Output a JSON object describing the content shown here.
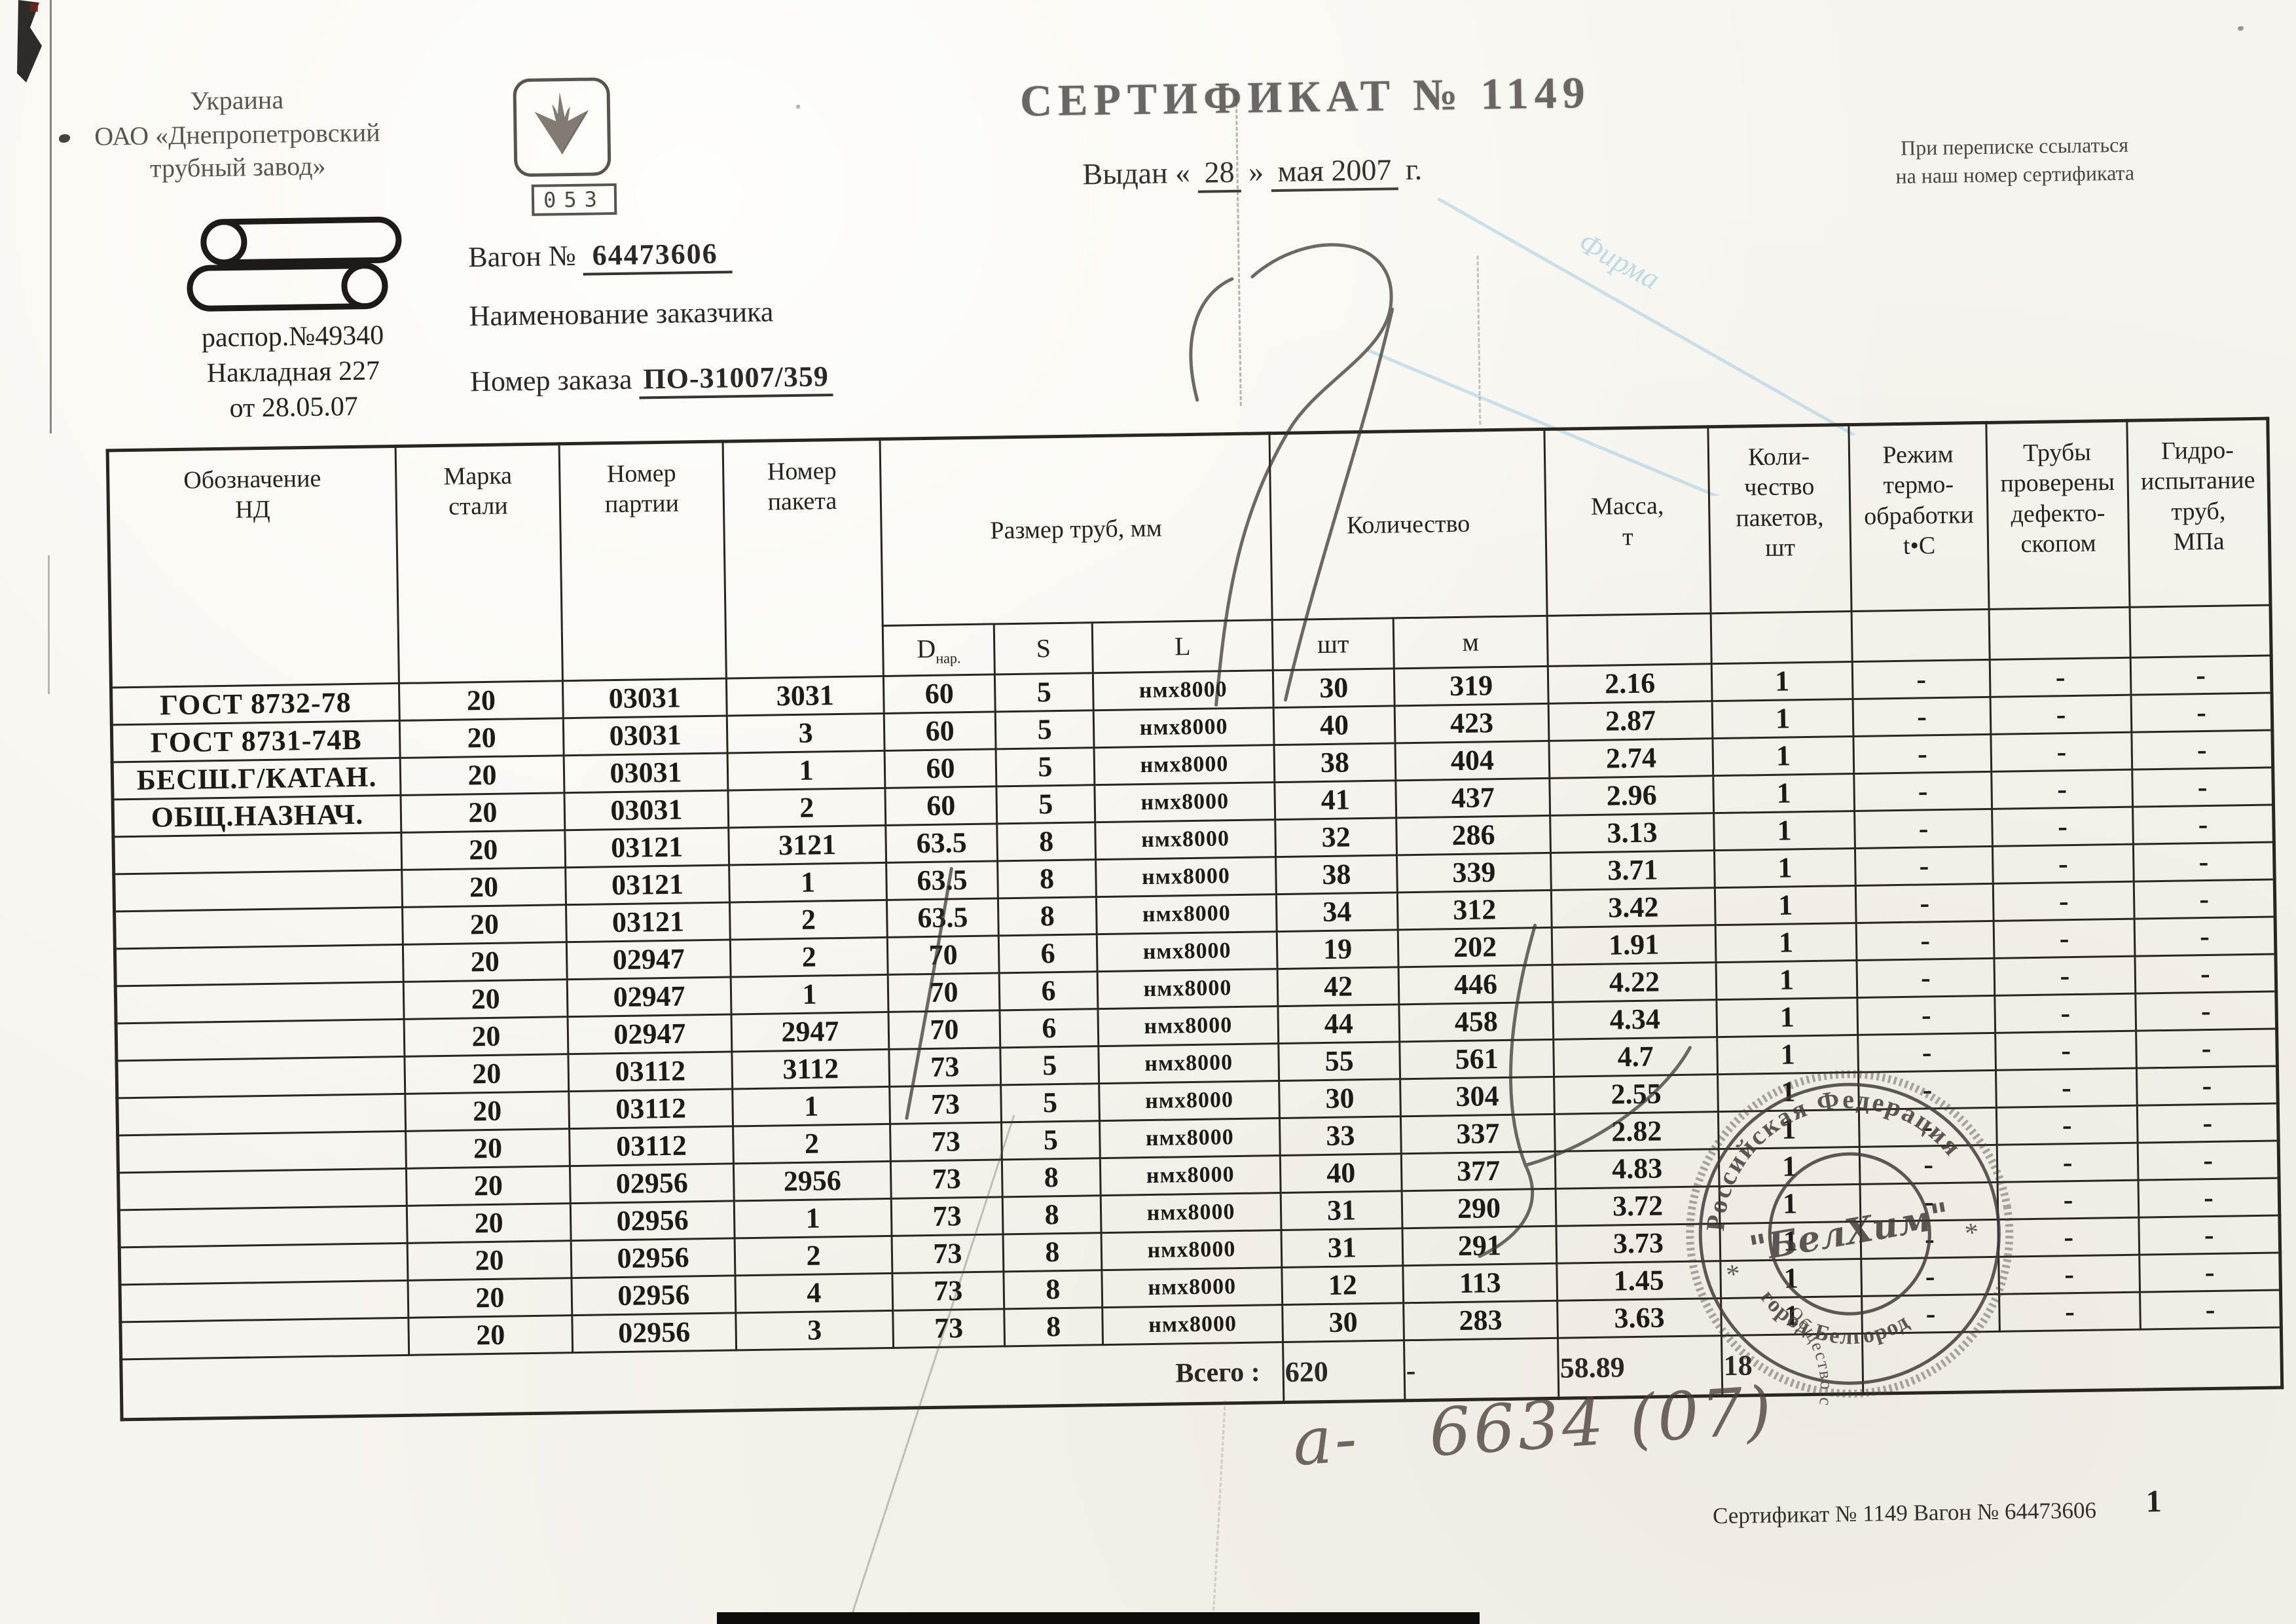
{
  "page": {
    "background": "#f6f4ee",
    "ink": "#2b2724"
  },
  "header": {
    "country": "Украина",
    "company": "ОАО «Днепропетровский\nтрубный завод»",
    "dispatch": "распор.№49340",
    "waybill": "Накладная 227",
    "waybill_date": "от 28.05.07",
    "badge": "053",
    "wagon_label": "Вагон №",
    "wagon_number": "64473606",
    "customer_label": "Наименование заказчика",
    "order_label": "Номер заказа",
    "order_number": "ПО-31007/359",
    "title": "СЕРТИФИКАТ № 1149",
    "issued_prefix": "Выдан «",
    "issued_day": "28",
    "issued_close": "»",
    "issued_date": "мая 2007",
    "issued_suffix": "г.",
    "note": "При переписке ссылаться\nна наш номер сертификата",
    "watermark": "Фирма"
  },
  "table": {
    "headers": {
      "c1": "Обозначение\nНД",
      "c2": "Марка\nстали",
      "c3": "Номер\nпартии",
      "c4": "Номер\nпакета",
      "size_group": "Размер труб, мм",
      "qty_group": "Количество",
      "c7": "Масса,\nт",
      "c8": "Коли-\nчество\nпакетов,\nшт",
      "c9": "Режим\nтермо-\nобработки\nt•С",
      "c10": "Трубы\nпроверены\nдефекто-\nскопом",
      "c11": "Гидро-\nиспытание\nтруб,\nМПа",
      "sub": {
        "d_main": "D",
        "d_sub": "нар.",
        "s": "S",
        "l": "L",
        "pcs": "шт",
        "m": "м"
      }
    },
    "rows": [
      [
        "ГОСТ 8732-78",
        "20",
        "03031",
        "3031",
        "60",
        "5",
        "нмх8000",
        "30",
        "319",
        "2.16",
        "1",
        "-",
        "-",
        "-"
      ],
      [
        "ГОСТ 8731-74В",
        "20",
        "03031",
        "3",
        "60",
        "5",
        "нмх8000",
        "40",
        "423",
        "2.87",
        "1",
        "-",
        "-",
        "-"
      ],
      [
        "БЕСШ.Г/КАТАН.",
        "20",
        "03031",
        "1",
        "60",
        "5",
        "нмх8000",
        "38",
        "404",
        "2.74",
        "1",
        "-",
        "-",
        "-"
      ],
      [
        "ОБЩ.НАЗНАЧ.",
        "20",
        "03031",
        "2",
        "60",
        "5",
        "нмх8000",
        "41",
        "437",
        "2.96",
        "1",
        "-",
        "-",
        "-"
      ],
      [
        "",
        "20",
        "03121",
        "3121",
        "63.5",
        "8",
        "нмх8000",
        "32",
        "286",
        "3.13",
        "1",
        "-",
        "-",
        "-"
      ],
      [
        "",
        "20",
        "03121",
        "1",
        "63.5",
        "8",
        "нмх8000",
        "38",
        "339",
        "3.71",
        "1",
        "-",
        "-",
        "-"
      ],
      [
        "",
        "20",
        "03121",
        "2",
        "63.5",
        "8",
        "нмх8000",
        "34",
        "312",
        "3.42",
        "1",
        "-",
        "-",
        "-"
      ],
      [
        "",
        "20",
        "02947",
        "2",
        "70",
        "6",
        "нмх8000",
        "19",
        "202",
        "1.91",
        "1",
        "-",
        "-",
        "-"
      ],
      [
        "",
        "20",
        "02947",
        "1",
        "70",
        "6",
        "нмх8000",
        "42",
        "446",
        "4.22",
        "1",
        "-",
        "-",
        "-"
      ],
      [
        "",
        "20",
        "02947",
        "2947",
        "70",
        "6",
        "нмх8000",
        "44",
        "458",
        "4.34",
        "1",
        "-",
        "-",
        "-"
      ],
      [
        "",
        "20",
        "03112",
        "3112",
        "73",
        "5",
        "нмх8000",
        "55",
        "561",
        "4.7",
        "1",
        "-",
        "-",
        "-"
      ],
      [
        "",
        "20",
        "03112",
        "1",
        "73",
        "5",
        "нмх8000",
        "30",
        "304",
        "2.55",
        "1",
        "-",
        "-",
        "-"
      ],
      [
        "",
        "20",
        "03112",
        "2",
        "73",
        "5",
        "нмх8000",
        "33",
        "337",
        "2.82",
        "1",
        "-",
        "-",
        "-"
      ],
      [
        "",
        "20",
        "02956",
        "2956",
        "73",
        "8",
        "нмх8000",
        "40",
        "377",
        "4.83",
        "1",
        "-",
        "-",
        "-"
      ],
      [
        "",
        "20",
        "02956",
        "1",
        "73",
        "8",
        "нмх8000",
        "31",
        "290",
        "3.72",
        "1",
        "-",
        "-",
        "-"
      ],
      [
        "",
        "20",
        "02956",
        "2",
        "73",
        "8",
        "нмх8000",
        "31",
        "291",
        "3.73",
        "1",
        "-",
        "-",
        "-"
      ],
      [
        "",
        "20",
        "02956",
        "4",
        "73",
        "8",
        "нмх8000",
        "12",
        "113",
        "1.45",
        "1",
        "-",
        "-",
        "-"
      ],
      [
        "",
        "20",
        "02956",
        "3",
        "73",
        "8",
        "нмх8000",
        "30",
        "283",
        "3.63",
        "1",
        "-",
        "-",
        "-"
      ]
    ],
    "totals": {
      "label": "Всего :",
      "pieces": "620",
      "meters": "-",
      "mass": "58.89",
      "packages": "18"
    }
  },
  "stamp": {
    "ring_top": "Российская Федерация",
    "ring_middle": "Общество с ограниченной ответственностью",
    "ring_bottom": "город Белгород",
    "center": "\"БелХим\"",
    "star_left": "*",
    "star_right": "*"
  },
  "annotation": {
    "handwritten": "а-   6634 (07)"
  },
  "footer": {
    "reference": "Сертификат № 1149 Вагон № 64473606",
    "page": "1"
  }
}
